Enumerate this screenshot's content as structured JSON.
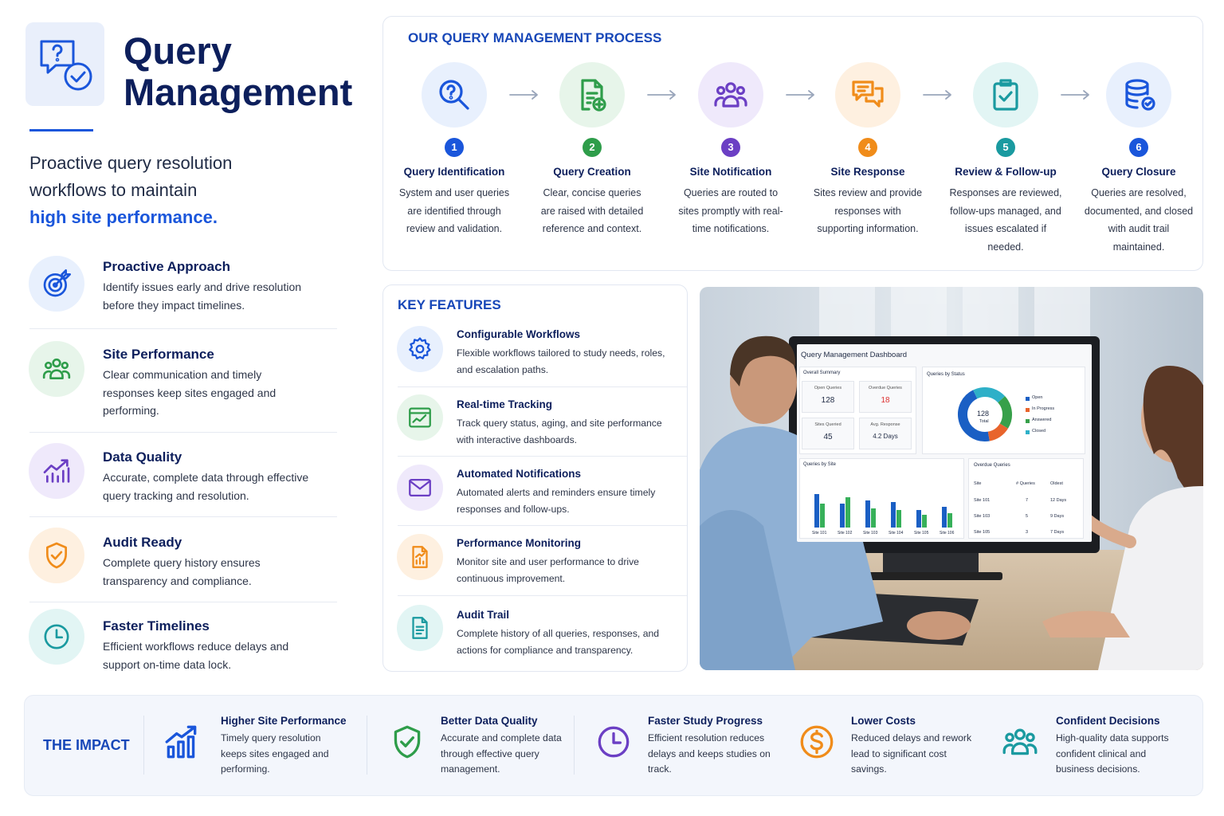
{
  "header": {
    "title_line1": "Query",
    "title_line2": "Management",
    "tagline": "Proactive query resolution workflows to maintain",
    "tagline_highlight": "high site performance."
  },
  "benefits": [
    {
      "title": "Proactive Approach",
      "text": "Identify issues early and drive resolution before they impact timelines."
    },
    {
      "title": "Site Performance",
      "text": "Clear communication and timely responses keep sites engaged and performing."
    },
    {
      "title": "Data Quality",
      "text": "Accurate, complete data through effective query tracking and resolution."
    },
    {
      "title": "Audit Ready",
      "text": "Complete query history ensures transparency and compliance."
    },
    {
      "title": "Faster Timelines",
      "text": "Efficient workflows reduce delays and support on-time data lock."
    }
  ],
  "process": {
    "title": "OUR QUERY MANAGEMENT PROCESS",
    "steps": [
      {
        "number": 1,
        "title": "Query Identification",
        "text": "System and user queries are identified through review and validation."
      },
      {
        "number": 2,
        "title": "Query Creation",
        "text": "Clear, concise queries are raised with detailed reference and context."
      },
      {
        "number": 3,
        "title": "Site Notification",
        "text": "Queries are routed to sites promptly with real-time notifications."
      },
      {
        "number": 4,
        "title": "Site Response",
        "text": "Sites review and provide responses with supporting information."
      },
      {
        "number": 5,
        "title": "Review & Follow-up",
        "text": "Responses are reviewed, follow-ups managed, and issues escalated if needed."
      },
      {
        "number": 6,
        "title": "Query Closure",
        "text": "Queries are resolved, documented, and closed with audit trail maintained."
      }
    ]
  },
  "features": {
    "title": "KEY FEATURES",
    "items": [
      {
        "title": "Configurable Workflows",
        "text": "Flexible workflows tailored to study needs, roles, and escalation paths."
      },
      {
        "title": "Real-time Tracking",
        "text": "Track query status, aging, and site performance with interactive dashboards."
      },
      {
        "title": "Automated Notifications",
        "text": "Automated alerts and reminders ensure timely responses and follow-ups."
      },
      {
        "title": "Performance Monitoring",
        "text": "Monitor site and user performance to drive continuous improvement."
      },
      {
        "title": "Audit Trail",
        "text": "Complete history of all queries, responses, and actions for compliance and transparency."
      }
    ]
  },
  "dashboard": {
    "title": "Query Management Dashboard",
    "summary_title": "Overall Summary",
    "cards": [
      {
        "label": "Open Queries",
        "value": 128
      },
      {
        "label": "Overdue Queries",
        "value": 18
      },
      {
        "label": "Sites Queried",
        "value": 45
      },
      {
        "label": "Avg. Response",
        "value": "4.2 Days"
      }
    ],
    "status_title": "Queries by Status",
    "status_total": 128,
    "status_total_label": "Total",
    "status_legend": [
      "Open",
      "In Progress",
      "Answered",
      "Closed"
    ],
    "sites_title": "Queries by Site",
    "sites": [
      "Site 101",
      "Site 102",
      "Site 103",
      "Site 104",
      "Site 105",
      "Site 106"
    ],
    "overdue_title": "Overdue Queries",
    "overdue_header": [
      "Site",
      "# Queries",
      "Oldest"
    ],
    "overdue_rows": [
      [
        "Site 101",
        7,
        "12 Days"
      ],
      [
        "Site 103",
        5,
        "9 Days"
      ],
      [
        "Site 105",
        3,
        "7 Days"
      ]
    ]
  },
  "impact": {
    "title": "THE IMPACT",
    "items": [
      {
        "title": "Higher Site Performance",
        "text": "Timely query resolution keeps sites engaged and performing."
      },
      {
        "title": "Better Data Quality",
        "text": "Accurate and complete data through effective query management."
      },
      {
        "title": "Faster Study Progress",
        "text": "Efficient resolution reduces delays and keeps studies on track."
      },
      {
        "title": "Lower Costs",
        "text": "Reduced delays and rework lead to significant cost savings."
      },
      {
        "title": "Confident Decisions",
        "text": "High-quality data supports confident clinical and business decisions."
      }
    ]
  }
}
